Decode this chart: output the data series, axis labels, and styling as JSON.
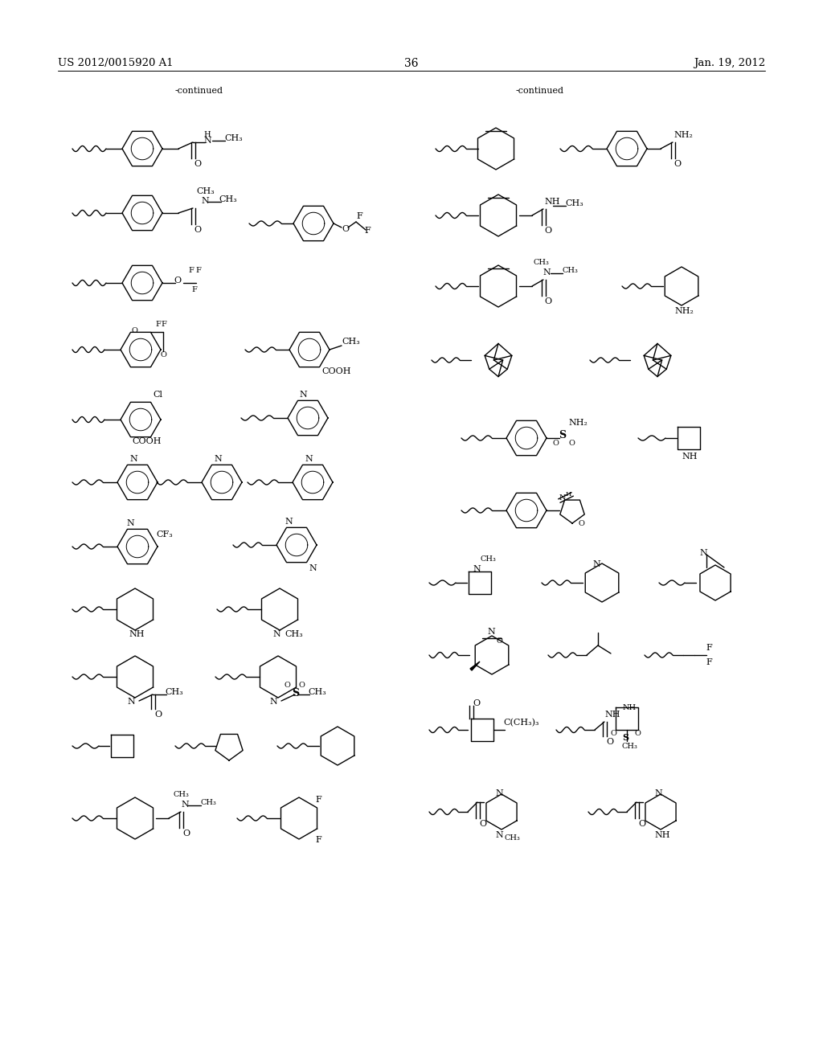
{
  "page_header_left": "US 2012/0015920 A1",
  "page_header_right": "Jan. 19, 2012",
  "page_number": "36",
  "background_color": "#ffffff",
  "text_color": "#000000",
  "continued_label": "-continued",
  "figsize": [
    10.24,
    13.2
  ],
  "dpi": 100
}
